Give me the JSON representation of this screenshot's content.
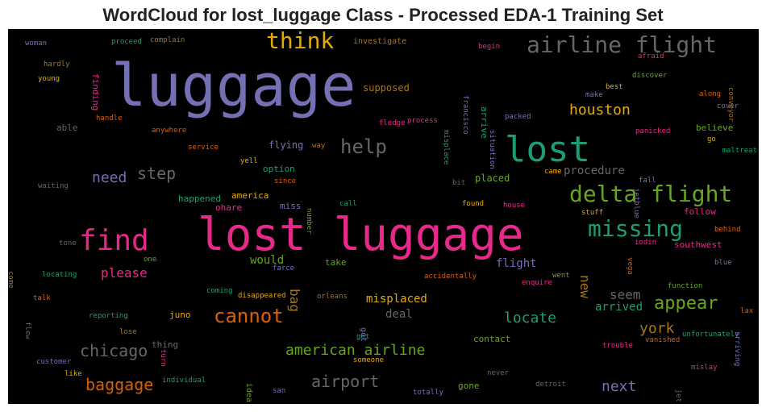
{
  "chart_data": {
    "type": "wordcloud",
    "title": "WordCloud for lost_luggage Class - Processed EDA-1 Training Set",
    "background": "#000000",
    "palette": [
      "#7570b3",
      "#e7298a",
      "#1b9e77",
      "#d95f02",
      "#66a61e",
      "#e6ab02",
      "#a6761d",
      "#666666"
    ],
    "words": [
      {
        "text": "luggage",
        "color": "#7570b3"
      },
      {
        "text": "lost luggage",
        "color": "#e7298a"
      },
      {
        "text": "lost",
        "color": "#1b9e77"
      },
      {
        "text": "think",
        "color": "#e6ab02"
      },
      {
        "text": "airline flight",
        "color": "#666666"
      },
      {
        "text": "delta flight",
        "color": "#66a61e"
      },
      {
        "text": "find",
        "color": "#e7298a"
      },
      {
        "text": "missing",
        "color": "#1b9e77"
      },
      {
        "text": "help",
        "color": "#666666"
      },
      {
        "text": "houston",
        "color": "#e6ab02"
      },
      {
        "text": "step",
        "color": "#666666"
      },
      {
        "text": "need",
        "color": "#7570b3"
      },
      {
        "text": "cannot",
        "color": "#d95f02"
      },
      {
        "text": "appear",
        "color": "#66a61e"
      },
      {
        "text": "chicago",
        "color": "#666666"
      },
      {
        "text": "american airline",
        "color": "#66a61e"
      },
      {
        "text": "baggage",
        "color": "#d95f02"
      },
      {
        "text": "airport",
        "color": "#666666"
      },
      {
        "text": "locate",
        "color": "#1b9e77"
      },
      {
        "text": "york",
        "color": "#a6761d"
      },
      {
        "text": "next",
        "color": "#7570b3"
      },
      {
        "text": "procedure",
        "color": "#666666"
      },
      {
        "text": "please",
        "color": "#e7298a"
      },
      {
        "text": "misplaced",
        "color": "#e6ab02"
      },
      {
        "text": "flight",
        "color": "#7570b3"
      },
      {
        "text": "new",
        "color": "#a6761d"
      },
      {
        "text": "seem",
        "color": "#666666"
      },
      {
        "text": "arrived",
        "color": "#1b9e77"
      },
      {
        "text": "deal",
        "color": "#666666"
      },
      {
        "text": "bag",
        "color": "#a6761d"
      },
      {
        "text": "would",
        "color": "#66a61e"
      },
      {
        "text": "flying",
        "color": "#7570b3"
      },
      {
        "text": "placed",
        "color": "#66a61e"
      },
      {
        "text": "believe",
        "color": "#66a61e"
      },
      {
        "text": "southwest",
        "color": "#e7298a"
      },
      {
        "text": "supposed",
        "color": "#a6761d"
      },
      {
        "text": "investigate",
        "color": "#a6761d"
      },
      {
        "text": "finding",
        "color": "#e7298a"
      },
      {
        "text": "arrive",
        "color": "#1b9e77"
      },
      {
        "text": "contact",
        "color": "#66a61e"
      },
      {
        "text": "able",
        "color": "#666666"
      },
      {
        "text": "happened",
        "color": "#1b9e77"
      },
      {
        "text": "america",
        "color": "#e6ab02"
      },
      {
        "text": "ohare",
        "color": "#e7298a"
      },
      {
        "text": "miss",
        "color": "#7570b3"
      },
      {
        "text": "option",
        "color": "#1b9e77"
      },
      {
        "text": "take",
        "color": "#66a61e"
      },
      {
        "text": "juno",
        "color": "#e6ab02"
      },
      {
        "text": "thing",
        "color": "#666666"
      },
      {
        "text": "gone",
        "color": "#66a61e"
      },
      {
        "text": "follow",
        "color": "#e7298a"
      },
      {
        "text": "found",
        "color": "#e6ab02"
      },
      {
        "text": "got",
        "color": "#7570b3"
      },
      {
        "text": "idea",
        "color": "#66a61e"
      },
      {
        "text": "proceed",
        "color": "#1b9e77"
      },
      {
        "text": "complain",
        "color": "#a6761d"
      },
      {
        "text": "woman",
        "color": "#7570b3"
      },
      {
        "text": "hardly",
        "color": "#a6761d"
      },
      {
        "text": "young",
        "color": "#e6ab02"
      },
      {
        "text": "begin",
        "color": "#e7298a"
      },
      {
        "text": "afraid",
        "color": "#e7298a"
      },
      {
        "text": "francisco",
        "color": "#7570b3"
      },
      {
        "text": "discover",
        "color": "#66a61e"
      },
      {
        "text": "conveyor",
        "color": "#a6761d"
      },
      {
        "text": "make",
        "color": "#7570b3"
      },
      {
        "text": "best",
        "color": "#e6ab02"
      },
      {
        "text": "along",
        "color": "#d95f02"
      },
      {
        "text": "cover",
        "color": "#7570b3"
      },
      {
        "text": "packed",
        "color": "#7570b3"
      },
      {
        "text": "handle",
        "color": "#d95f02"
      },
      {
        "text": "anywhere",
        "color": "#d95f02"
      },
      {
        "text": "fledge",
        "color": "#e7298a"
      },
      {
        "text": "process",
        "color": "#e7298a"
      },
      {
        "text": "misplace",
        "color": "#1b9e77"
      },
      {
        "text": "situation",
        "color": "#7570b3"
      },
      {
        "text": "panicked",
        "color": "#e7298a"
      },
      {
        "text": "go",
        "color": "#e6ab02"
      },
      {
        "text": "service",
        "color": "#d95f02"
      },
      {
        "text": "way",
        "color": "#a6761d"
      },
      {
        "text": "maltreat",
        "color": "#1b9e77"
      },
      {
        "text": "yell",
        "color": "#e6ab02"
      },
      {
        "text": "waiting",
        "color": "#666666"
      },
      {
        "text": "since",
        "color": "#d95f02"
      },
      {
        "text": "bit",
        "color": "#666666"
      },
      {
        "text": "came",
        "color": "#e6ab02"
      },
      {
        "text": "fall",
        "color": "#7570b3"
      },
      {
        "text": "jetblue",
        "color": "#7570b3"
      },
      {
        "text": "call",
        "color": "#1b9e77"
      },
      {
        "text": "house",
        "color": "#e7298a"
      },
      {
        "text": "stuff",
        "color": "#e6ab02"
      },
      {
        "text": "number",
        "color": "#66a61e"
      },
      {
        "text": "behind",
        "color": "#d95f02"
      },
      {
        "text": "tone",
        "color": "#666666"
      },
      {
        "text": "iodin",
        "color": "#e7298a"
      },
      {
        "text": "one",
        "color": "#66a61e"
      },
      {
        "text": "farce",
        "color": "#7570b3"
      },
      {
        "text": "vega",
        "color": "#d95f02"
      },
      {
        "text": "blue",
        "color": "#7570b3"
      },
      {
        "text": "locating",
        "color": "#1b9e77"
      },
      {
        "text": "accidentally",
        "color": "#d95f02"
      },
      {
        "text": "went",
        "color": "#66a61e"
      },
      {
        "text": "come",
        "color": "#a6761d"
      },
      {
        "text": "enquire",
        "color": "#e7298a"
      },
      {
        "text": "function",
        "color": "#66a61e"
      },
      {
        "text": "talk",
        "color": "#d95f02"
      },
      {
        "text": "coming",
        "color": "#1b9e77"
      },
      {
        "text": "disappeared",
        "color": "#e6ab02"
      },
      {
        "text": "orleans",
        "color": "#a6761d"
      },
      {
        "text": "lax",
        "color": "#d95f02"
      },
      {
        "text": "reporting",
        "color": "#1b9e77"
      },
      {
        "text": "lose",
        "color": "#a6761d"
      },
      {
        "text": "get",
        "color": "#1b9e77"
      },
      {
        "text": "flew",
        "color": "#666666"
      },
      {
        "text": "unfortunately",
        "color": "#1b9e77"
      },
      {
        "text": "arriving",
        "color": "#7570b3"
      },
      {
        "text": "customer",
        "color": "#7570b3"
      },
      {
        "text": "turn",
        "color": "#e7298a"
      },
      {
        "text": "trouble",
        "color": "#e7298a"
      },
      {
        "text": "vanished",
        "color": "#d95f02"
      },
      {
        "text": "someone",
        "color": "#e6ab02"
      },
      {
        "text": "like",
        "color": "#e6ab02"
      },
      {
        "text": "mislay",
        "color": "#e7298a"
      },
      {
        "text": "never",
        "color": "#666666"
      },
      {
        "text": "individual",
        "color": "#1b9e77"
      },
      {
        "text": "detroit",
        "color": "#666666"
      },
      {
        "text": "san",
        "color": "#7570b3"
      },
      {
        "text": "totally",
        "color": "#7570b3"
      },
      {
        "text": "jet",
        "color": "#666666"
      }
    ]
  }
}
